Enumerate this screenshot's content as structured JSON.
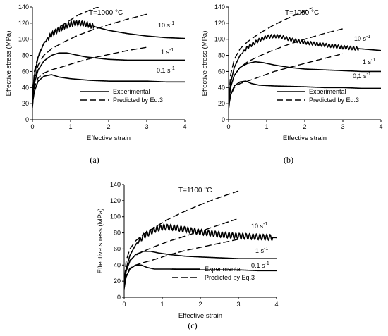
{
  "chart_data": [
    {
      "type": "line",
      "panel": "(a)",
      "temperature_label": "T=1000 °C",
      "xlabel": "Effective strain",
      "ylabel": "Effective stress (MPa)",
      "xlim": [
        0,
        4
      ],
      "ylim": [
        0,
        140
      ],
      "xticks": [
        0,
        1,
        2,
        3,
        4
      ],
      "yticks": [
        0,
        20,
        40,
        60,
        80,
        100,
        120,
        140
      ],
      "legend": {
        "position": "bottom-center",
        "experimental": "Experimental",
        "predicted": "Predicted  by Eq.3"
      },
      "series": [
        {
          "name": "10 s-1",
          "style": "experimental",
          "label": "10 s",
          "label_sup": "-1",
          "x": [
            0,
            0.05,
            0.15,
            0.3,
            0.5,
            0.8,
            1.0,
            1.2,
            1.4,
            1.6,
            2.0,
            2.5,
            3.0,
            3.5,
            4.0
          ],
          "y": [
            30,
            55,
            78,
            95,
            106,
            115,
            119,
            120,
            119,
            116,
            111,
            107,
            104,
            102,
            101
          ],
          "oscillation": {
            "from": 0.3,
            "to": 1.6,
            "amp": 3,
            "period": 0.07
          }
        },
        {
          "name": "1 s-1",
          "style": "experimental",
          "label": "1 s",
          "label_sup": "-1",
          "x": [
            0,
            0.05,
            0.15,
            0.3,
            0.5,
            0.7,
            0.9,
            1.1,
            1.4,
            2.0,
            2.5,
            3.0,
            3.5,
            4.0
          ],
          "y": [
            25,
            45,
            62,
            73,
            80,
            83,
            83,
            81,
            78,
            75,
            74,
            74,
            74,
            74
          ]
        },
        {
          "name": "0.1 s-1",
          "style": "experimental",
          "label": "0.1 s",
          "label_sup": "-1",
          "x": [
            0,
            0.05,
            0.15,
            0.3,
            0.5,
            0.7,
            1.0,
            1.5,
            2.0,
            2.5,
            3.0,
            3.5,
            4.0
          ],
          "y": [
            20,
            35,
            48,
            54,
            56,
            53,
            51,
            49,
            48,
            48,
            48,
            47,
            47
          ]
        },
        {
          "name": "10 s-1 predicted",
          "style": "predicted",
          "x": [
            0,
            0.05,
            0.15,
            0.3,
            0.5,
            0.8,
            1.2,
            1.6,
            2.0,
            2.4
          ],
          "y": [
            25,
            60,
            80,
            95,
            106,
            118,
            130,
            138,
            144,
            148
          ]
        },
        {
          "name": "1 s-1 predicted",
          "style": "predicted",
          "x": [
            0,
            0.05,
            0.15,
            0.3,
            0.5,
            0.8,
            1.2,
            1.6,
            2.0,
            2.5,
            3.0
          ],
          "y": [
            20,
            48,
            68,
            80,
            88,
            96,
            105,
            112,
            118,
            125,
            131
          ]
        },
        {
          "name": "0.1 s-1 predicted",
          "style": "predicted",
          "x": [
            0,
            0.05,
            0.15,
            0.3,
            0.5,
            0.8,
            1.2,
            1.6,
            2.0,
            2.5,
            3.0
          ],
          "y": [
            15,
            40,
            52,
            58,
            62,
            66,
            72,
            77,
            81,
            86,
            90
          ]
        }
      ]
    },
    {
      "type": "line",
      "panel": "(b)",
      "temperature_label": "T=1050 °C",
      "xlabel": "Effective strain",
      "ylabel": "Effective stress (MPa)",
      "xlim": [
        0,
        4
      ],
      "ylim": [
        0,
        140
      ],
      "xticks": [
        0,
        1,
        2,
        3,
        4
      ],
      "yticks": [
        0,
        20,
        40,
        60,
        80,
        100,
        120,
        140
      ],
      "legend": {
        "position": "bottom-center",
        "experimental": "Experimental",
        "predicted": "Predicted  by Eq.3"
      },
      "series": [
        {
          "name": "10 s-1",
          "style": "experimental",
          "label": "10 s",
          "label_sup": "-1",
          "x": [
            0,
            0.05,
            0.15,
            0.3,
            0.5,
            0.8,
            1.0,
            1.2,
            1.4,
            1.6,
            2.0,
            2.5,
            3.0,
            3.5,
            4.0
          ],
          "y": [
            25,
            45,
            65,
            80,
            90,
            99,
            103,
            104,
            103,
            100,
            96,
            93,
            90,
            88,
            86
          ],
          "oscillation": {
            "from": 0.3,
            "to": 3.4,
            "amp": 2,
            "period": 0.08
          }
        },
        {
          "name": "1 s-1",
          "style": "experimental",
          "label": "1 s",
          "label_sup": "-1",
          "x": [
            0,
            0.05,
            0.15,
            0.3,
            0.5,
            0.7,
            0.9,
            1.2,
            1.6,
            2.0,
            2.5,
            3.0,
            3.5,
            4.0
          ],
          "y": [
            20,
            40,
            55,
            65,
            70,
            72,
            71,
            68,
            65,
            63,
            62,
            61,
            60,
            60
          ]
        },
        {
          "name": "0,1 s-1",
          "style": "experimental",
          "label": "0,1 s",
          "label_sup": "-1",
          "x": [
            0,
            0.05,
            0.15,
            0.3,
            0.45,
            0.6,
            0.8,
            1.2,
            2.0,
            2.5,
            3.0,
            3.5,
            4.0
          ],
          "y": [
            15,
            30,
            42,
            47,
            48,
            45,
            43,
            42,
            41,
            40,
            40,
            39,
            39
          ]
        },
        {
          "name": "10 s-1 predicted",
          "style": "predicted",
          "x": [
            0,
            0.05,
            0.15,
            0.3,
            0.5,
            0.8,
            1.2,
            1.6,
            2.0,
            2.2
          ],
          "y": [
            20,
            55,
            75,
            88,
            97,
            107,
            118,
            127,
            135,
            139
          ]
        },
        {
          "name": "1 s-1 predicted",
          "style": "predicted",
          "x": [
            0,
            0.05,
            0.15,
            0.3,
            0.5,
            0.8,
            1.2,
            1.6,
            2.0,
            2.5,
            3.0
          ],
          "y": [
            15,
            40,
            55,
            65,
            72,
            79,
            87,
            94,
            100,
            107,
            113
          ]
        },
        {
          "name": "0,1 s-1 predicted",
          "style": "predicted",
          "x": [
            0,
            0.05,
            0.15,
            0.3,
            0.5,
            0.8,
            1.2,
            1.6,
            2.0,
            2.5,
            3.0
          ],
          "y": [
            12,
            30,
            40,
            45,
            48,
            53,
            60,
            65,
            70,
            76,
            82
          ]
        }
      ]
    },
    {
      "type": "line",
      "panel": "(c)",
      "temperature_label": "T=1100 °C",
      "xlabel": "Effective strain",
      "ylabel": "Effective stress (MPa)",
      "xlim": [
        0,
        4
      ],
      "ylim": [
        0,
        140
      ],
      "xticks": [
        0,
        1,
        2,
        3,
        4
      ],
      "yticks": [
        0,
        20,
        40,
        60,
        80,
        100,
        120,
        140
      ],
      "legend": {
        "position": "bottom-center",
        "experimental": "Experimental",
        "predicted": "Predicted  by Eq.3"
      },
      "series": [
        {
          "name": "10 s-1",
          "style": "experimental",
          "label": "10 s",
          "label_sup": "-1",
          "x": [
            0,
            0.05,
            0.15,
            0.3,
            0.5,
            0.8,
            1.0,
            1.2,
            1.4,
            1.6,
            2.0,
            2.5,
            3.0,
            3.5,
            4.0
          ],
          "y": [
            20,
            35,
            52,
            65,
            76,
            84,
            87,
            87,
            86,
            84,
            81,
            78,
            76,
            75,
            74
          ],
          "oscillation": {
            "from": 0.3,
            "to": 3.9,
            "amp": 3.5,
            "period": 0.09
          }
        },
        {
          "name": "1 s-1",
          "style": "experimental",
          "label": "1 s",
          "label_sup": "-1",
          "x": [
            0,
            0.05,
            0.15,
            0.3,
            0.5,
            0.7,
            0.9,
            1.2,
            1.6,
            2.0,
            2.5,
            3.0,
            3.5,
            4.0
          ],
          "y": [
            15,
            32,
            45,
            53,
            57,
            57,
            55,
            53,
            51,
            50,
            49,
            48,
            48,
            48
          ]
        },
        {
          "name": "0.1 s-1",
          "style": "experimental",
          "label": "0.1 s",
          "label_sup": "-1",
          "x": [
            0,
            0.05,
            0.15,
            0.3,
            0.45,
            0.6,
            0.8,
            1.2,
            2.0,
            2.5,
            3.0,
            3.5,
            4.0
          ],
          "y": [
            12,
            25,
            35,
            40,
            40,
            37,
            35,
            35,
            34,
            34,
            34,
            33,
            33
          ]
        },
        {
          "name": "10 s-1 predicted",
          "style": "predicted",
          "x": [
            0,
            0.05,
            0.15,
            0.3,
            0.5,
            0.8,
            1.2,
            1.6,
            2.0,
            2.5,
            3.0
          ],
          "y": [
            15,
            45,
            60,
            70,
            78,
            87,
            98,
            107,
            115,
            124,
            132
          ]
        },
        {
          "name": "1 s-1 predicted",
          "style": "predicted",
          "x": [
            0,
            0.05,
            0.15,
            0.3,
            0.5,
            0.8,
            1.2,
            1.6,
            2.0,
            2.5,
            2.95
          ],
          "y": [
            12,
            35,
            46,
            52,
            57,
            63,
            70,
            76,
            82,
            90,
            97
          ]
        },
        {
          "name": "0.1 s-1 predicted",
          "style": "predicted",
          "x": [
            0,
            0.05,
            0.15,
            0.3,
            0.5,
            0.8,
            1.2,
            1.6,
            2.0,
            2.5,
            3.0
          ],
          "y": [
            10,
            28,
            36,
            40,
            43,
            47,
            53,
            58,
            62,
            67,
            72
          ]
        }
      ]
    }
  ]
}
